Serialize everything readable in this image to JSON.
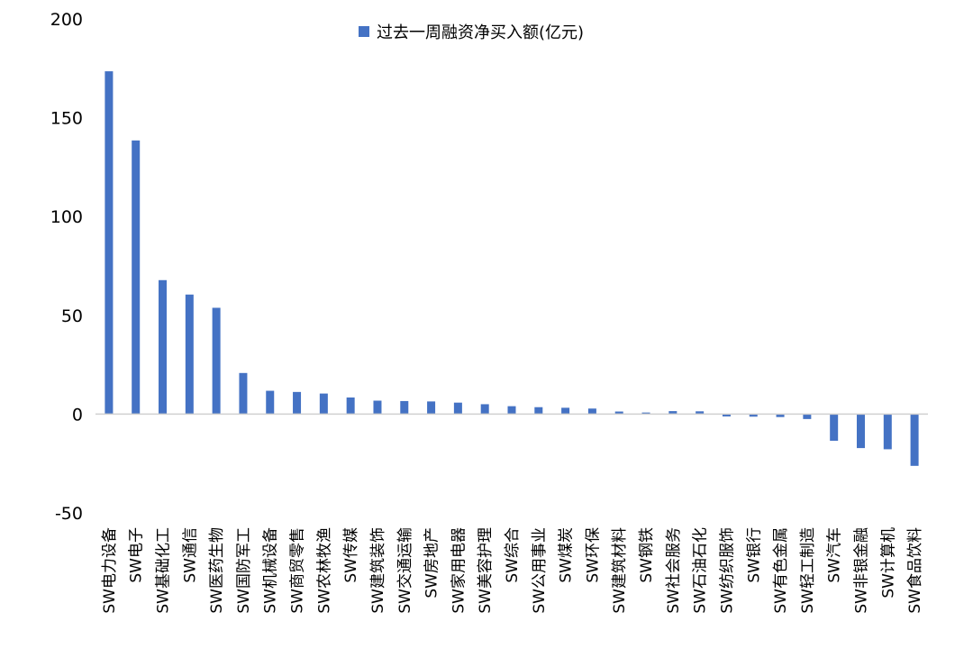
{
  "chart_data": {
    "type": "bar",
    "legend": {
      "placement": "top-center"
    },
    "series": [
      {
        "name": "过去一周融资净买入额(亿元)",
        "color": "#4472C4",
        "values": [
          173.5,
          138.5,
          67.8,
          60.5,
          53.8,
          20.8,
          11.8,
          11.2,
          10.4,
          8.4,
          6.8,
          6.6,
          6.4,
          5.8,
          5.0,
          4.0,
          3.5,
          3.2,
          2.8,
          1.3,
          0.8,
          1.5,
          1.4,
          -1.2,
          -1.3,
          -1.5,
          -2.5,
          -13.5,
          -17.2,
          -17.8,
          -26.2
        ]
      }
    ],
    "categories": [
      "SW电力设备",
      "SW电子",
      "SW基础化工",
      "SW通信",
      "SW医药生物",
      "SW国防军工",
      "SW机械设备",
      "SW商贸零售",
      "SW农林牧渔",
      "SW传媒",
      "SW建筑装饰",
      "SW交通运输",
      "SW房地产",
      "SW家用电器",
      "SW美容护理",
      "SW综合",
      "SW公用事业",
      "SW煤炭",
      "SW环保",
      "SW建筑材料",
      "SW钢铁",
      "SW社会服务",
      "SW石油石化",
      "SW纺织服饰",
      "SW银行",
      "SW有色金属",
      "SW轻工制造",
      "SW汽车",
      "SW非银金融",
      "SW计算机",
      "SW食品饮料"
    ],
    "ylim": [
      -50,
      200
    ],
    "yticks": [
      200,
      150,
      100,
      50,
      0,
      -50
    ],
    "grid": false
  }
}
